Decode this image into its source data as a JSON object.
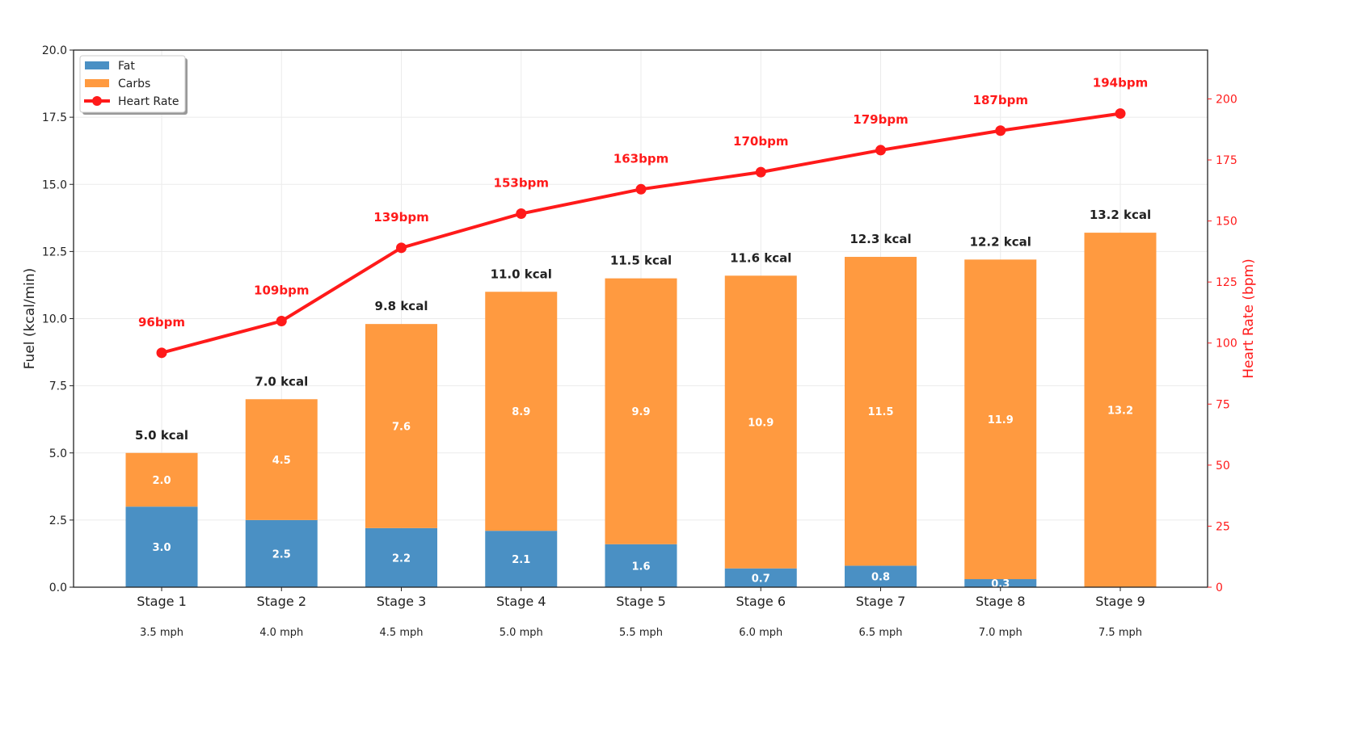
{
  "chart_data": {
    "type": "bar",
    "stacked": true,
    "categories": [
      "Stage 1",
      "Stage 2",
      "Stage 3",
      "Stage 4",
      "Stage 5",
      "Stage 6",
      "Stage 7",
      "Stage 8",
      "Stage 9"
    ],
    "sublabels": [
      "3.5 mph",
      "4.0 mph",
      "4.5 mph",
      "5.0 mph",
      "5.5 mph",
      "6.0 mph",
      "6.5 mph",
      "7.0 mph",
      "7.5 mph"
    ],
    "series": [
      {
        "name": "Fat",
        "axis": "left",
        "color": "#4a90c4",
        "values": [
          3.0,
          2.5,
          2.2,
          2.1,
          1.6,
          0.7,
          0.8,
          0.3,
          0.0
        ],
        "labels": [
          "3.0",
          "2.5",
          "2.2",
          "2.1",
          "1.6",
          "0.7",
          "0.8",
          "0.3",
          ""
        ]
      },
      {
        "name": "Carbs",
        "axis": "left",
        "color": "#ff9a40",
        "values": [
          2.0,
          4.5,
          7.6,
          8.9,
          9.9,
          10.9,
          11.5,
          11.9,
          13.2
        ],
        "labels": [
          "2.0",
          "4.5",
          "7.6",
          "8.9",
          "9.9",
          "10.9",
          "11.5",
          "11.9",
          "13.2"
        ]
      },
      {
        "name": "Heart Rate",
        "axis": "right",
        "type": "line",
        "color": "#ff1a1a",
        "values": [
          96,
          109,
          139,
          153,
          163,
          170,
          179,
          187,
          194
        ],
        "labels": [
          "96bpm",
          "109bpm",
          "139bpm",
          "153bpm",
          "163bpm",
          "170bpm",
          "179bpm",
          "187bpm",
          "194bpm"
        ]
      }
    ],
    "totals": [
      "5.0 kcal",
      "7.0 kcal",
      "9.8 kcal",
      "11.0 kcal",
      "11.5 kcal",
      "11.6 kcal",
      "12.3 kcal",
      "12.2 kcal",
      "13.2 kcal"
    ],
    "ylabel": "Fuel (kcal/min)",
    "y2label": "Heart Rate (bpm)",
    "ylim": [
      0,
      20
    ],
    "y2lim": [
      0,
      220
    ],
    "yticks": [
      "0.0",
      "2.5",
      "5.0",
      "7.5",
      "10.0",
      "12.5",
      "15.0",
      "17.5",
      "20.0"
    ],
    "y2ticks": [
      "0",
      "25",
      "50",
      "75",
      "100",
      "125",
      "150",
      "175",
      "200"
    ],
    "grid": true,
    "legend": "top-left"
  }
}
